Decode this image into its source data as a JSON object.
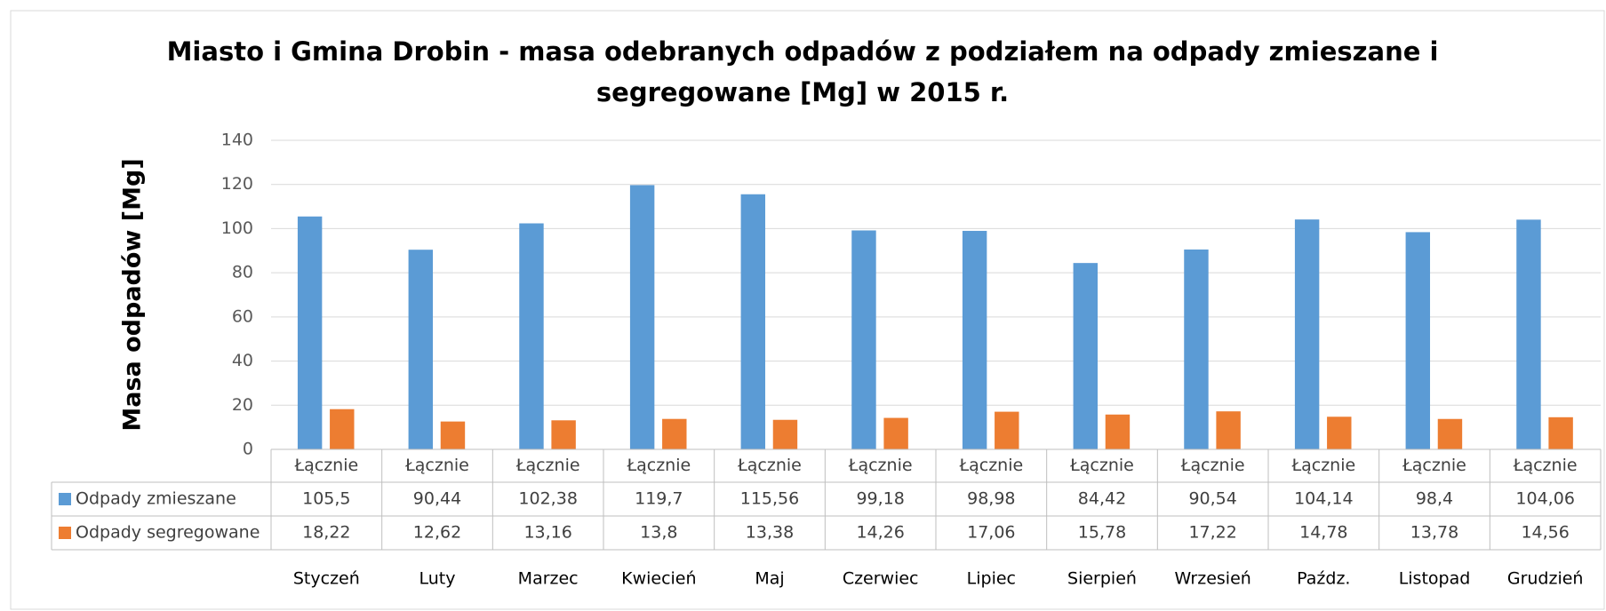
{
  "chart_data": {
    "type": "bar",
    "title": [
      "Miasto i Gmina Drobin - masa odebranych odpadów z podziałem na odpady zmieszane i",
      "segregowane [Mg] w 2015 r."
    ],
    "ylabel": "Masa odpadów [Mg]",
    "categories": [
      "Łącznie",
      "Łącznie",
      "Łącznie",
      "Łącznie",
      "Łącznie",
      "Łącznie",
      "Łącznie",
      "Łącznie",
      "Łącznie",
      "Łącznie",
      "Łącznie",
      "Łącznie"
    ],
    "groups": [
      "Styczeń",
      "Luty",
      "Marzec",
      "Kwiecień",
      "Maj",
      "Czerwiec",
      "Lipiec",
      "Sierpień",
      "Wrzesień",
      "Paźdz.",
      "Listopad",
      "Grudzień"
    ],
    "series": [
      {
        "name": "Odpady zmieszane",
        "color": "#5b9bd5",
        "values": [
          105.5,
          90.44,
          102.38,
          119.7,
          115.56,
          99.18,
          98.98,
          84.42,
          90.54,
          104.14,
          98.4,
          104.06
        ],
        "value_labels": [
          "105,5",
          "90,44",
          "102,38",
          "119,7",
          "115,56",
          "99,18",
          "98,98",
          "84,42",
          "90,54",
          "104,14",
          "98,4",
          "104,06"
        ]
      },
      {
        "name": "Odpady segregowane",
        "color": "#ed7d31",
        "values": [
          18.22,
          12.62,
          13.16,
          13.8,
          13.38,
          14.26,
          17.06,
          15.78,
          17.22,
          14.78,
          13.78,
          14.56
        ],
        "value_labels": [
          "18,22",
          "12,62",
          "13,16",
          "13,8",
          "13,38",
          "14,26",
          "17,06",
          "15,78",
          "17,22",
          "14,78",
          "13,78",
          "14,56"
        ]
      }
    ],
    "ylim": [
      0,
      140
    ],
    "yticks": [
      0,
      20,
      40,
      60,
      80,
      100,
      120,
      140
    ],
    "grid": true
  }
}
